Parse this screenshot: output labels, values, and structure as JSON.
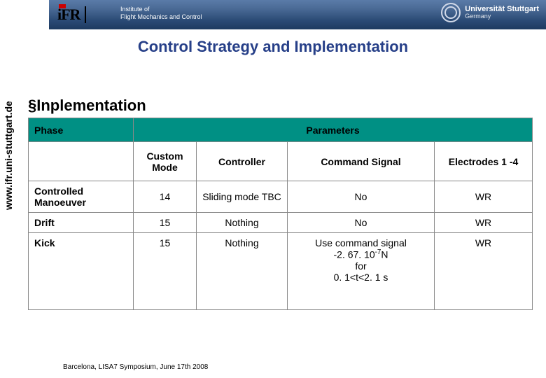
{
  "header": {
    "logo_text": "iFR",
    "institute_line1": "Institute of",
    "institute_line2": "Flight Mechanics and Control",
    "university_name": "Universität Stuttgart",
    "university_country": "Germany"
  },
  "sidebar": {
    "url": "www.ifr.uni-stuttgart.de"
  },
  "title": "Control Strategy and Implementation",
  "section": "§Inplementation",
  "table": {
    "col_phase": "Phase",
    "col_params": "Parameters",
    "sub_custom": "Custom Mode",
    "sub_controller": "Controller",
    "sub_command": "Command Signal",
    "sub_electrodes": "Electrodes 1 -4",
    "rows": [
      {
        "phase": "Controlled Manoeuver",
        "mode": "14",
        "controller": "Sliding mode TBC",
        "command": "No",
        "electrodes": "WR"
      },
      {
        "phase": "Drift",
        "mode": "15",
        "controller": "Nothing",
        "command": "No",
        "electrodes": "WR"
      },
      {
        "phase": "Kick",
        "mode": "15",
        "controller": "Nothing",
        "command_html": "Use command signal<br>-2. 67. 10<sup>-7</sup>N<br>for<br>0. 1&lt;t&lt;2. 1 s",
        "electrodes": "WR"
      }
    ]
  },
  "footer": "Barcelona, LISA7 Symposium, June 17th 2008",
  "colors": {
    "header_grad_top": "#5a7ba8",
    "header_grad_bot": "#1d3a60",
    "title_color": "#263f88",
    "table_header_bg": "#009084"
  }
}
